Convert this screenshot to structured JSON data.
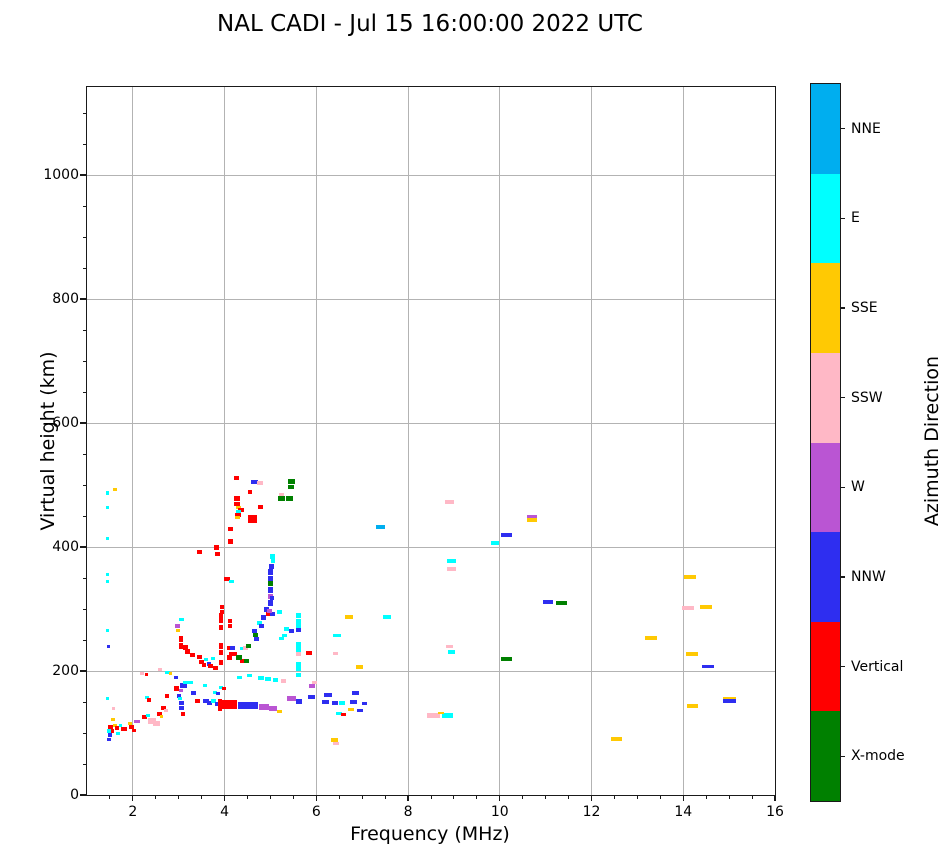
{
  "title": "NAL CADI - Jul 15 16:00:00 2022 UTC",
  "chart_data": {
    "type": "scatter",
    "title": "NAL CADI - Jul 15 16:00:00 2022 UTC",
    "xlabel": "Frequency (MHz)",
    "ylabel": "Virtual height (km)",
    "xlim": [
      1,
      16
    ],
    "ylim": [
      0,
      1142
    ],
    "x_ticks": [
      2,
      4,
      6,
      8,
      10,
      12,
      14,
      16
    ],
    "y_ticks": [
      0,
      200,
      400,
      600,
      800,
      1000
    ],
    "x_minor_step": 0.5,
    "y_minor_step": 50,
    "grid": true,
    "grid_color": "#b3b3b3",
    "legend_position": "right-colorbar",
    "colorbar": {
      "label": "Azimuth Direction",
      "categories_top_to_bottom": [
        "NNE",
        "E",
        "SSE",
        "SSW",
        "W",
        "NNW",
        "Vertical",
        "X-mode"
      ],
      "colors": {
        "NNE": "#00aeef",
        "E": "#00ffff",
        "SSE": "#ffc903",
        "SSW": "#ffb8c6",
        "W": "#ba55d3",
        "NNW": "#2e2ef0",
        "Vertical": "#ff0000",
        "X-mode": "#008000"
      }
    },
    "point_key_to_category": {
      "NNE": "NNE",
      "E": "E",
      "SSE": "SSE",
      "SSW": "SSW",
      "W": "W",
      "NNW": "NNW",
      "V": "Vertical",
      "X": "X-mode"
    },
    "points_format": [
      "freq_MHz",
      "virtual_height_km",
      "direction_key",
      "mark_w_px",
      "mark_h_px"
    ],
    "points": [
      [
        1.45,
        487,
        "E",
        3,
        4
      ],
      [
        1.62,
        492,
        "SSE",
        4,
        3
      ],
      [
        1.45,
        463,
        "E",
        3,
        3
      ],
      [
        1.45,
        414,
        "E",
        3,
        3
      ],
      [
        1.44,
        356,
        "E",
        3,
        3
      ],
      [
        1.45,
        344,
        "E",
        3,
        3
      ],
      [
        1.45,
        265,
        "E",
        3,
        3
      ],
      [
        1.46,
        240,
        "NNW",
        3,
        3
      ],
      [
        1.45,
        155,
        "E",
        3,
        3
      ],
      [
        1.58,
        139,
        "SSW",
        3,
        3
      ],
      [
        1.56,
        121,
        "SSE",
        4,
        3
      ],
      [
        1.6,
        112,
        "SSE",
        4,
        3
      ],
      [
        1.52,
        110,
        "V",
        5,
        4
      ],
      [
        1.55,
        104,
        "V",
        4,
        4
      ],
      [
        1.47,
        103,
        "E",
        4,
        4
      ],
      [
        1.5,
        96,
        "NNW",
        4,
        4
      ],
      [
        1.48,
        89,
        "NNW",
        4,
        3
      ],
      [
        1.65,
        108,
        "V",
        4,
        4
      ],
      [
        1.68,
        100,
        "E",
        4,
        3
      ],
      [
        1.72,
        112,
        "E",
        3,
        3
      ],
      [
        1.8,
        107,
        "V",
        6,
        4
      ],
      [
        1.93,
        116,
        "SSE",
        4,
        3
      ],
      [
        1.97,
        110,
        "V",
        5,
        4
      ],
      [
        2.02,
        104,
        "V",
        4,
        3
      ],
      [
        2.08,
        118,
        "W",
        6,
        3
      ],
      [
        2.25,
        126,
        "V",
        5,
        4
      ],
      [
        2.32,
        129,
        "E",
        4,
        3
      ],
      [
        2.3,
        158,
        "E",
        4,
        3
      ],
      [
        2.36,
        154,
        "V",
        4,
        4
      ],
      [
        2.75,
        160,
        "V",
        4,
        4
      ],
      [
        2.42,
        119,
        "SSW",
        8,
        6
      ],
      [
        2.52,
        115,
        "SSW",
        7,
        5
      ],
      [
        2.58,
        131,
        "V",
        5,
        4
      ],
      [
        2.62,
        127,
        "SSE",
        3,
        3
      ],
      [
        2.66,
        140,
        "V",
        5,
        4
      ],
      [
        2.73,
        137,
        "SSW",
        4,
        3
      ],
      [
        2.95,
        172,
        "V",
        5,
        5
      ],
      [
        3.0,
        160,
        "NNW",
        4,
        4
      ],
      [
        3.02,
        155,
        "E",
        4,
        3
      ],
      [
        3.1,
        176,
        "NNW",
        7,
        5
      ],
      [
        3.05,
        168,
        "W",
        4,
        3
      ],
      [
        3.05,
        148,
        "NNW",
        5,
        4
      ],
      [
        3.05,
        140,
        "NNW",
        5,
        4
      ],
      [
        3.1,
        130,
        "V",
        4,
        4
      ],
      [
        3.32,
        164,
        "NNW",
        5,
        4
      ],
      [
        3.4,
        151,
        "V",
        5,
        4
      ],
      [
        3.15,
        181,
        "E",
        5,
        3
      ],
      [
        3.25,
        181,
        "E",
        5,
        3
      ],
      [
        3.58,
        176,
        "E",
        4,
        3
      ],
      [
        3.6,
        151,
        "NNW",
        6,
        4
      ],
      [
        3.68,
        148,
        "NNW",
        5,
        4
      ],
      [
        3.76,
        151,
        "E",
        5,
        4
      ],
      [
        3.85,
        146,
        "NNW",
        5,
        4
      ],
      [
        3.95,
        144,
        "V",
        5,
        4
      ],
      [
        3.8,
        166,
        "E",
        4,
        3
      ],
      [
        3.86,
        163,
        "NNW",
        4,
        3
      ],
      [
        3.92,
        174,
        "E",
        4,
        3
      ],
      [
        3.98,
        172,
        "V",
        4,
        3
      ],
      [
        2.2,
        196,
        "SSW",
        4,
        3
      ],
      [
        2.3,
        195,
        "V",
        3,
        3
      ],
      [
        2.6,
        202,
        "SSW",
        4,
        3
      ],
      [
        2.76,
        198,
        "E",
        5,
        3
      ],
      [
        2.82,
        196,
        "SSE",
        3,
        3
      ],
      [
        2.95,
        190,
        "NNW",
        4,
        3
      ],
      [
        3.07,
        283,
        "E",
        5,
        3
      ],
      [
        2.97,
        272,
        "W",
        5,
        4
      ],
      [
        2.98,
        266,
        "SSE",
        4,
        3
      ],
      [
        3.06,
        252,
        "V",
        4,
        6
      ],
      [
        3.06,
        241,
        "V",
        4,
        6
      ],
      [
        3.15,
        238,
        "V",
        5,
        5
      ],
      [
        3.2,
        232,
        "V",
        5,
        5
      ],
      [
        3.3,
        226,
        "V",
        5,
        4
      ],
      [
        3.45,
        222,
        "V",
        5,
        4
      ],
      [
        3.5,
        215,
        "V",
        5,
        4
      ],
      [
        3.55,
        210,
        "V",
        4,
        4
      ],
      [
        3.6,
        218,
        "E",
        4,
        3
      ],
      [
        3.65,
        212,
        "NNW",
        4,
        4
      ],
      [
        3.7,
        208,
        "V",
        5,
        4
      ],
      [
        3.8,
        205,
        "V",
        5,
        4
      ],
      [
        3.75,
        220,
        "E",
        4,
        3
      ],
      [
        4.1,
        222,
        "V",
        5,
        5
      ],
      [
        4.15,
        228,
        "V",
        5,
        4
      ],
      [
        4.33,
        220,
        "E",
        4,
        3
      ],
      [
        4.38,
        236,
        "E",
        5,
        3
      ],
      [
        4.38,
        216,
        "V",
        4,
        4
      ],
      [
        4.47,
        216,
        "X",
        5,
        4
      ],
      [
        3.92,
        290,
        "V",
        4,
        5
      ],
      [
        3.92,
        281,
        "V",
        4,
        5
      ],
      [
        3.92,
        270,
        "V",
        4,
        5
      ],
      [
        3.92,
        240,
        "V",
        4,
        6
      ],
      [
        3.92,
        230,
        "V",
        4,
        5
      ],
      [
        3.92,
        213,
        "V",
        4,
        5
      ],
      [
        3.9,
        150,
        "V",
        4,
        7
      ],
      [
        3.9,
        140,
        "V",
        4,
        6
      ],
      [
        4.1,
        237,
        "V",
        5,
        4
      ],
      [
        4.18,
        237,
        "NNW",
        5,
        4
      ],
      [
        4.22,
        227,
        "V",
        4,
        4
      ],
      [
        4.32,
        222,
        "X",
        6,
        5
      ],
      [
        4.45,
        237,
        "SSW",
        5,
        4
      ],
      [
        4.52,
        240,
        "X",
        5,
        4
      ],
      [
        4.65,
        265,
        "NNW",
        5,
        4
      ],
      [
        4.68,
        258,
        "X",
        5,
        4
      ],
      [
        4.7,
        252,
        "NNW",
        5,
        4
      ],
      [
        4.76,
        278,
        "E",
        5,
        4
      ],
      [
        4.8,
        272,
        "NNW",
        5,
        4
      ],
      [
        4.85,
        287,
        "NNW",
        5,
        5
      ],
      [
        4.95,
        292,
        "V",
        5,
        4
      ],
      [
        5.05,
        292,
        "NNW",
        5,
        4
      ],
      [
        4.92,
        300,
        "NNW",
        5,
        5
      ],
      [
        4.97,
        297,
        "W",
        5,
        4
      ],
      [
        5.0,
        310,
        "NNW",
        5,
        6
      ],
      [
        5.0,
        320,
        "W",
        5,
        5
      ],
      [
        5.04,
        318,
        "NNW",
        4,
        4
      ],
      [
        5.0,
        331,
        "NNW",
        5,
        6
      ],
      [
        5.0,
        341,
        "X",
        5,
        5
      ],
      [
        5.0,
        349,
        "NNW",
        5,
        5
      ],
      [
        5.0,
        360,
        "NNW",
        5,
        6
      ],
      [
        5.02,
        368,
        "NNW",
        5,
        5
      ],
      [
        5.05,
        385,
        "E",
        5,
        5
      ],
      [
        5.06,
        377,
        "E",
        4,
        4
      ],
      [
        5.2,
        295,
        "E",
        5,
        4
      ],
      [
        5.35,
        268,
        "E",
        5,
        4
      ],
      [
        5.3,
        258,
        "E",
        5,
        3
      ],
      [
        5.25,
        252,
        "E",
        5,
        3
      ],
      [
        5.45,
        265,
        "NNW",
        5,
        4
      ],
      [
        5.62,
        289,
        "E",
        5,
        5
      ],
      [
        5.62,
        280,
        "E",
        5,
        5
      ],
      [
        5.62,
        271,
        "E",
        5,
        5
      ],
      [
        5.62,
        266,
        "NNW",
        5,
        4
      ],
      [
        5.62,
        243,
        "E",
        5,
        5
      ],
      [
        5.62,
        234,
        "E",
        5,
        5
      ],
      [
        5.62,
        227,
        "SSW",
        5,
        4
      ],
      [
        5.62,
        210,
        "E",
        5,
        5
      ],
      [
        5.62,
        203,
        "E",
        5,
        4
      ],
      [
        5.62,
        193,
        "E",
        5,
        4
      ],
      [
        4.33,
        190,
        "E",
        5,
        3
      ],
      [
        4.55,
        193,
        "E",
        5,
        3
      ],
      [
        4.8,
        189,
        "E",
        6,
        4
      ],
      [
        4.95,
        187,
        "E",
        6,
        4
      ],
      [
        5.1,
        185,
        "E",
        5,
        4
      ],
      [
        5.28,
        184,
        "SSW",
        5,
        4
      ],
      [
        5.95,
        182,
        "SSW",
        5,
        3
      ],
      [
        6.45,
        258,
        "E",
        8,
        3
      ],
      [
        6.42,
        228,
        "SSW",
        5,
        3
      ],
      [
        5.85,
        229,
        "V",
        6,
        4
      ],
      [
        5.9,
        176,
        "W",
        6,
        4
      ],
      [
        4.1,
        146,
        "V",
        15,
        9
      ],
      [
        4.5,
        145,
        "NNW",
        20,
        7
      ],
      [
        4.85,
        142,
        "W",
        10,
        6
      ],
      [
        5.05,
        140,
        "W",
        8,
        5
      ],
      [
        5.2,
        135,
        "SSE",
        5,
        3
      ],
      [
        5.45,
        156,
        "W",
        9,
        5
      ],
      [
        5.62,
        151,
        "NNW",
        6,
        5
      ],
      [
        5.9,
        158,
        "NNW",
        7,
        4
      ],
      [
        6.25,
        162,
        "NNW",
        8,
        4
      ],
      [
        6.2,
        150,
        "NNW",
        7,
        4
      ],
      [
        6.4,
        149,
        "NNW",
        6,
        4
      ],
      [
        6.55,
        148,
        "E",
        6,
        4
      ],
      [
        6.5,
        131,
        "E",
        6,
        3
      ],
      [
        6.6,
        130,
        "V",
        5,
        3
      ],
      [
        6.85,
        165,
        "NNW",
        7,
        4
      ],
      [
        6.8,
        150,
        "NNW",
        7,
        4
      ],
      [
        7.05,
        148,
        "NNW",
        5,
        3
      ],
      [
        6.75,
        138,
        "SSE",
        6,
        3
      ],
      [
        6.95,
        137,
        "NNW",
        6,
        3
      ],
      [
        6.72,
        287,
        "SSE",
        8,
        4
      ],
      [
        7.55,
        287,
        "E",
        8,
        4
      ],
      [
        6.95,
        207,
        "SSE",
        7,
        4
      ],
      [
        6.4,
        88,
        "SSE",
        7,
        4
      ],
      [
        6.42,
        83,
        "SSW",
        6,
        3
      ],
      [
        7.4,
        433,
        "NNE",
        9,
        4
      ],
      [
        8.9,
        472,
        "SSW",
        9,
        4
      ],
      [
        8.95,
        378,
        "E",
        9,
        4
      ],
      [
        8.95,
        365,
        "SSW",
        9,
        4
      ],
      [
        8.9,
        239,
        "SSW",
        7,
        3
      ],
      [
        8.95,
        231,
        "E",
        7,
        4
      ],
      [
        8.55,
        128,
        "SSW",
        13,
        5
      ],
      [
        8.85,
        128,
        "E",
        11,
        5
      ],
      [
        8.72,
        133,
        "SSE",
        6,
        2
      ],
      [
        9.9,
        407,
        "E",
        8,
        4
      ],
      [
        10.15,
        420,
        "NNW",
        11,
        4
      ],
      [
        10.7,
        449,
        "W",
        10,
        4
      ],
      [
        10.7,
        444,
        "SSE",
        10,
        4
      ],
      [
        10.15,
        219,
        "X",
        11,
        4
      ],
      [
        11.05,
        312,
        "NNW",
        10,
        4
      ],
      [
        11.35,
        309,
        "X",
        11,
        4
      ],
      [
        13.3,
        254,
        "SSE",
        12,
        4
      ],
      [
        14.15,
        352,
        "SSE",
        12,
        4
      ],
      [
        14.1,
        301,
        "SSW",
        12,
        4
      ],
      [
        14.5,
        303,
        "SSE",
        12,
        4
      ],
      [
        14.2,
        228,
        "SSE",
        12,
        4
      ],
      [
        14.55,
        207,
        "NNW",
        12,
        3
      ],
      [
        14.2,
        143,
        "SSE",
        11,
        4
      ],
      [
        15.0,
        155,
        "SSE",
        13,
        4
      ],
      [
        15.0,
        151,
        "NNW",
        13,
        4
      ],
      [
        12.55,
        90,
        "SSE",
        11,
        4
      ],
      [
        4.25,
        511,
        "V",
        5,
        4
      ],
      [
        4.28,
        478,
        "V",
        6,
        5
      ],
      [
        4.28,
        469,
        "V",
        6,
        4
      ],
      [
        4.3,
        464,
        "SSE",
        5,
        3
      ],
      [
        4.35,
        460,
        "V",
        6,
        4
      ],
      [
        4.3,
        457,
        "E",
        5,
        3
      ],
      [
        4.3,
        452,
        "V",
        6,
        4
      ],
      [
        4.28,
        448,
        "SSE",
        5,
        3
      ],
      [
        4.55,
        488,
        "V",
        4,
        4
      ],
      [
        4.6,
        445,
        "V",
        9,
        8
      ],
      [
        4.78,
        465,
        "V",
        5,
        4
      ],
      [
        4.65,
        505,
        "NNW",
        7,
        4
      ],
      [
        4.78,
        504,
        "SSW",
        6,
        4
      ],
      [
        5.25,
        484,
        "SSW",
        5,
        3
      ],
      [
        5.25,
        478,
        "X",
        7,
        5
      ],
      [
        5.42,
        478,
        "X",
        7,
        5
      ],
      [
        5.45,
        505,
        "X",
        7,
        5
      ],
      [
        5.45,
        497,
        "X",
        6,
        4
      ],
      [
        4.12,
        429,
        "V",
        5,
        4
      ],
      [
        4.12,
        409,
        "V",
        5,
        5
      ],
      [
        3.82,
        399,
        "V",
        5,
        5
      ],
      [
        3.45,
        392,
        "V",
        5,
        4
      ],
      [
        3.85,
        388,
        "V",
        5,
        4
      ],
      [
        4.05,
        348,
        "V",
        6,
        4
      ],
      [
        4.15,
        344,
        "E",
        5,
        3
      ],
      [
        3.95,
        303,
        "V",
        4,
        4
      ],
      [
        3.95,
        295,
        "V",
        4,
        4
      ],
      [
        4.12,
        281,
        "V",
        4,
        4
      ],
      [
        4.12,
        272,
        "V",
        4,
        4
      ]
    ]
  }
}
